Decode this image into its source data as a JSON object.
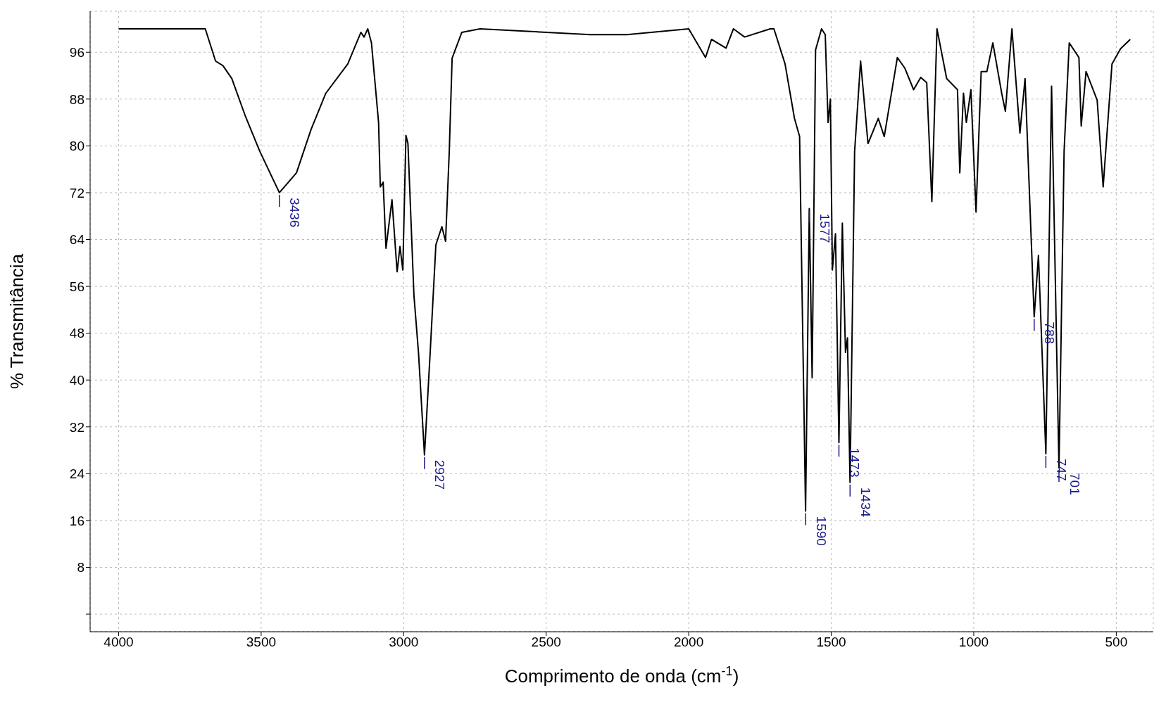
{
  "chart_data": {
    "type": "line",
    "xlabel": "Comprimento de onda (cm$^{-1}$)",
    "ylabel": "% Transmitância",
    "xlim": [
      4100,
      370
    ],
    "xticks": [
      4000,
      3500,
      3000,
      2500,
      2000,
      1500,
      1000,
      500
    ],
    "ylim": [
      -3,
      103
    ],
    "yticks": [
      {
        "value": 0,
        "label": null
      },
      8,
      16,
      24,
      32,
      40,
      48,
      56,
      64,
      72,
      80,
      88,
      96
    ],
    "grid": true,
    "marker": "none",
    "line_style": "solid",
    "series": [
      {
        "color": "#000000",
        "x": [
          4000,
          3696,
          3660,
          3634,
          3603,
          3557,
          3505,
          3436,
          3376,
          3325,
          3273,
          3196,
          3150,
          3139,
          3126,
          3113,
          3088,
          3082,
          3072,
          3062,
          3041,
          3023,
          3013,
          3003,
          2992,
          2985,
          2964,
          2948,
          2927,
          2907,
          2887,
          2866,
          2853,
          2840,
          2830,
          2796,
          2732,
          2345,
          2217,
          2000,
          1941,
          1920,
          1869,
          1843,
          1804,
          1714,
          1701,
          1662,
          1629,
          1611,
          1590,
          1577,
          1567,
          1555,
          1534,
          1521,
          1511,
          1503,
          1496,
          1485,
          1473,
          1461,
          1450,
          1443,
          1434,
          1418,
          1397,
          1371,
          1335,
          1314,
          1268,
          1242,
          1211,
          1186,
          1165,
          1147,
          1129,
          1095,
          1057,
          1049,
          1036,
          1026,
          1010,
          992,
          974,
          954,
          933,
          902,
          889,
          866,
          838,
          820,
          788,
          773,
          747,
          727,
          701,
          683,
          665,
          631,
          623,
          606,
          567,
          546,
          515,
          485,
          451
        ],
        "values": [
          100,
          100,
          94.5,
          93.7,
          91.5,
          85.3,
          79.1,
          72,
          75.4,
          82.8,
          89,
          94,
          99.4,
          98.6,
          100,
          97.6,
          84,
          73,
          73.8,
          62.5,
          70.8,
          58.5,
          62.8,
          58.8,
          81.8,
          80.4,
          54.5,
          44.7,
          27.2,
          44.7,
          63.1,
          66.2,
          63.7,
          79.1,
          95,
          99.4,
          100,
          99,
          99,
          100,
          95.1,
          98.2,
          96.7,
          100,
          98.6,
          100,
          100,
          94,
          84.7,
          81.6,
          17.6,
          69.3,
          40.4,
          96.4,
          100,
          99,
          84,
          88,
          58.8,
          65,
          29.3,
          66.8,
          44.7,
          47.2,
          22.5,
          79,
          94.5,
          80.4,
          84.7,
          81.6,
          95.1,
          93.3,
          89.6,
          91.7,
          90.8,
          70.5,
          100,
          91.5,
          89.6,
          75.4,
          89,
          84,
          89.6,
          68.7,
          92.7,
          92.7,
          97.6,
          89,
          85.9,
          100,
          82.2,
          91.5,
          50.8,
          61.3,
          27.4,
          90.2,
          25,
          79.1,
          97.6,
          95.1,
          83.4,
          92.7,
          87.8,
          73,
          94,
          96.6,
          98.2
        ]
      }
    ],
    "annotations": [
      {
        "text": "3436",
        "x": 3436,
        "y": 72
      },
      {
        "text": "2927",
        "x": 2927,
        "y": 27.2
      },
      {
        "text": "1590",
        "x": 1590,
        "y": 17.6
      },
      {
        "text": "1577",
        "x": 1577,
        "y": 69.3
      },
      {
        "text": "1473",
        "x": 1473,
        "y": 29.3
      },
      {
        "text": "1434",
        "x": 1434,
        "y": 22.5
      },
      {
        "text": "788",
        "x": 788,
        "y": 50.8
      },
      {
        "text": "747",
        "x": 747,
        "y": 27.4
      },
      {
        "text": "701",
        "x": 701,
        "y": 25
      }
    ]
  }
}
